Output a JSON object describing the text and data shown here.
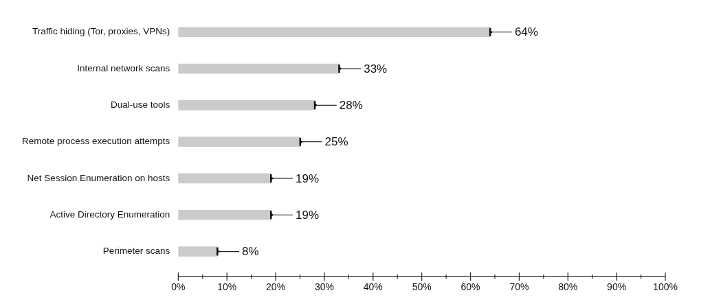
{
  "chart_data": {
    "type": "bar",
    "orientation": "horizontal",
    "categories": [
      "Traffic hiding (Tor, proxies, VPNs)",
      "Internal network scans",
      "Dual-use tools",
      "Remote process execution attempts",
      "Net Session Enumeration on hosts",
      "Active Directory Enumeration",
      "Perimeter scans"
    ],
    "values": [
      64,
      33,
      28,
      25,
      19,
      19,
      8
    ],
    "value_labels": [
      "64%",
      "33%",
      "28%",
      "25%",
      "19%",
      "19%",
      "8%"
    ],
    "color": "#cccbcc",
    "xlim": [
      0,
      100
    ],
    "xticks": [
      {
        "value": 0,
        "label": "0%"
      },
      {
        "value": 5,
        "label": null
      },
      {
        "value": 10,
        "label": "10%"
      },
      {
        "value": 15,
        "label": null
      },
      {
        "value": 20,
        "label": "20%"
      },
      {
        "value": 25,
        "label": null
      },
      {
        "value": 30,
        "label": "30%"
      },
      {
        "value": 35,
        "label": null
      },
      {
        "value": 40,
        "label": "40%"
      },
      {
        "value": 45,
        "label": null
      },
      {
        "value": 50,
        "label": "50%"
      },
      {
        "value": 55,
        "label": null
      },
      {
        "value": 60,
        "label": "60%"
      },
      {
        "value": 65,
        "label": null
      },
      {
        "value": 70,
        "label": "70%"
      },
      {
        "value": 75,
        "label": null
      },
      {
        "value": 80,
        "label": "80%"
      },
      {
        "value": 85,
        "label": null
      },
      {
        "value": 90,
        "label": "90%"
      },
      {
        "value": 95,
        "label": null
      },
      {
        "value": 100,
        "label": "100%"
      }
    ],
    "grid": false,
    "legend": false
  }
}
